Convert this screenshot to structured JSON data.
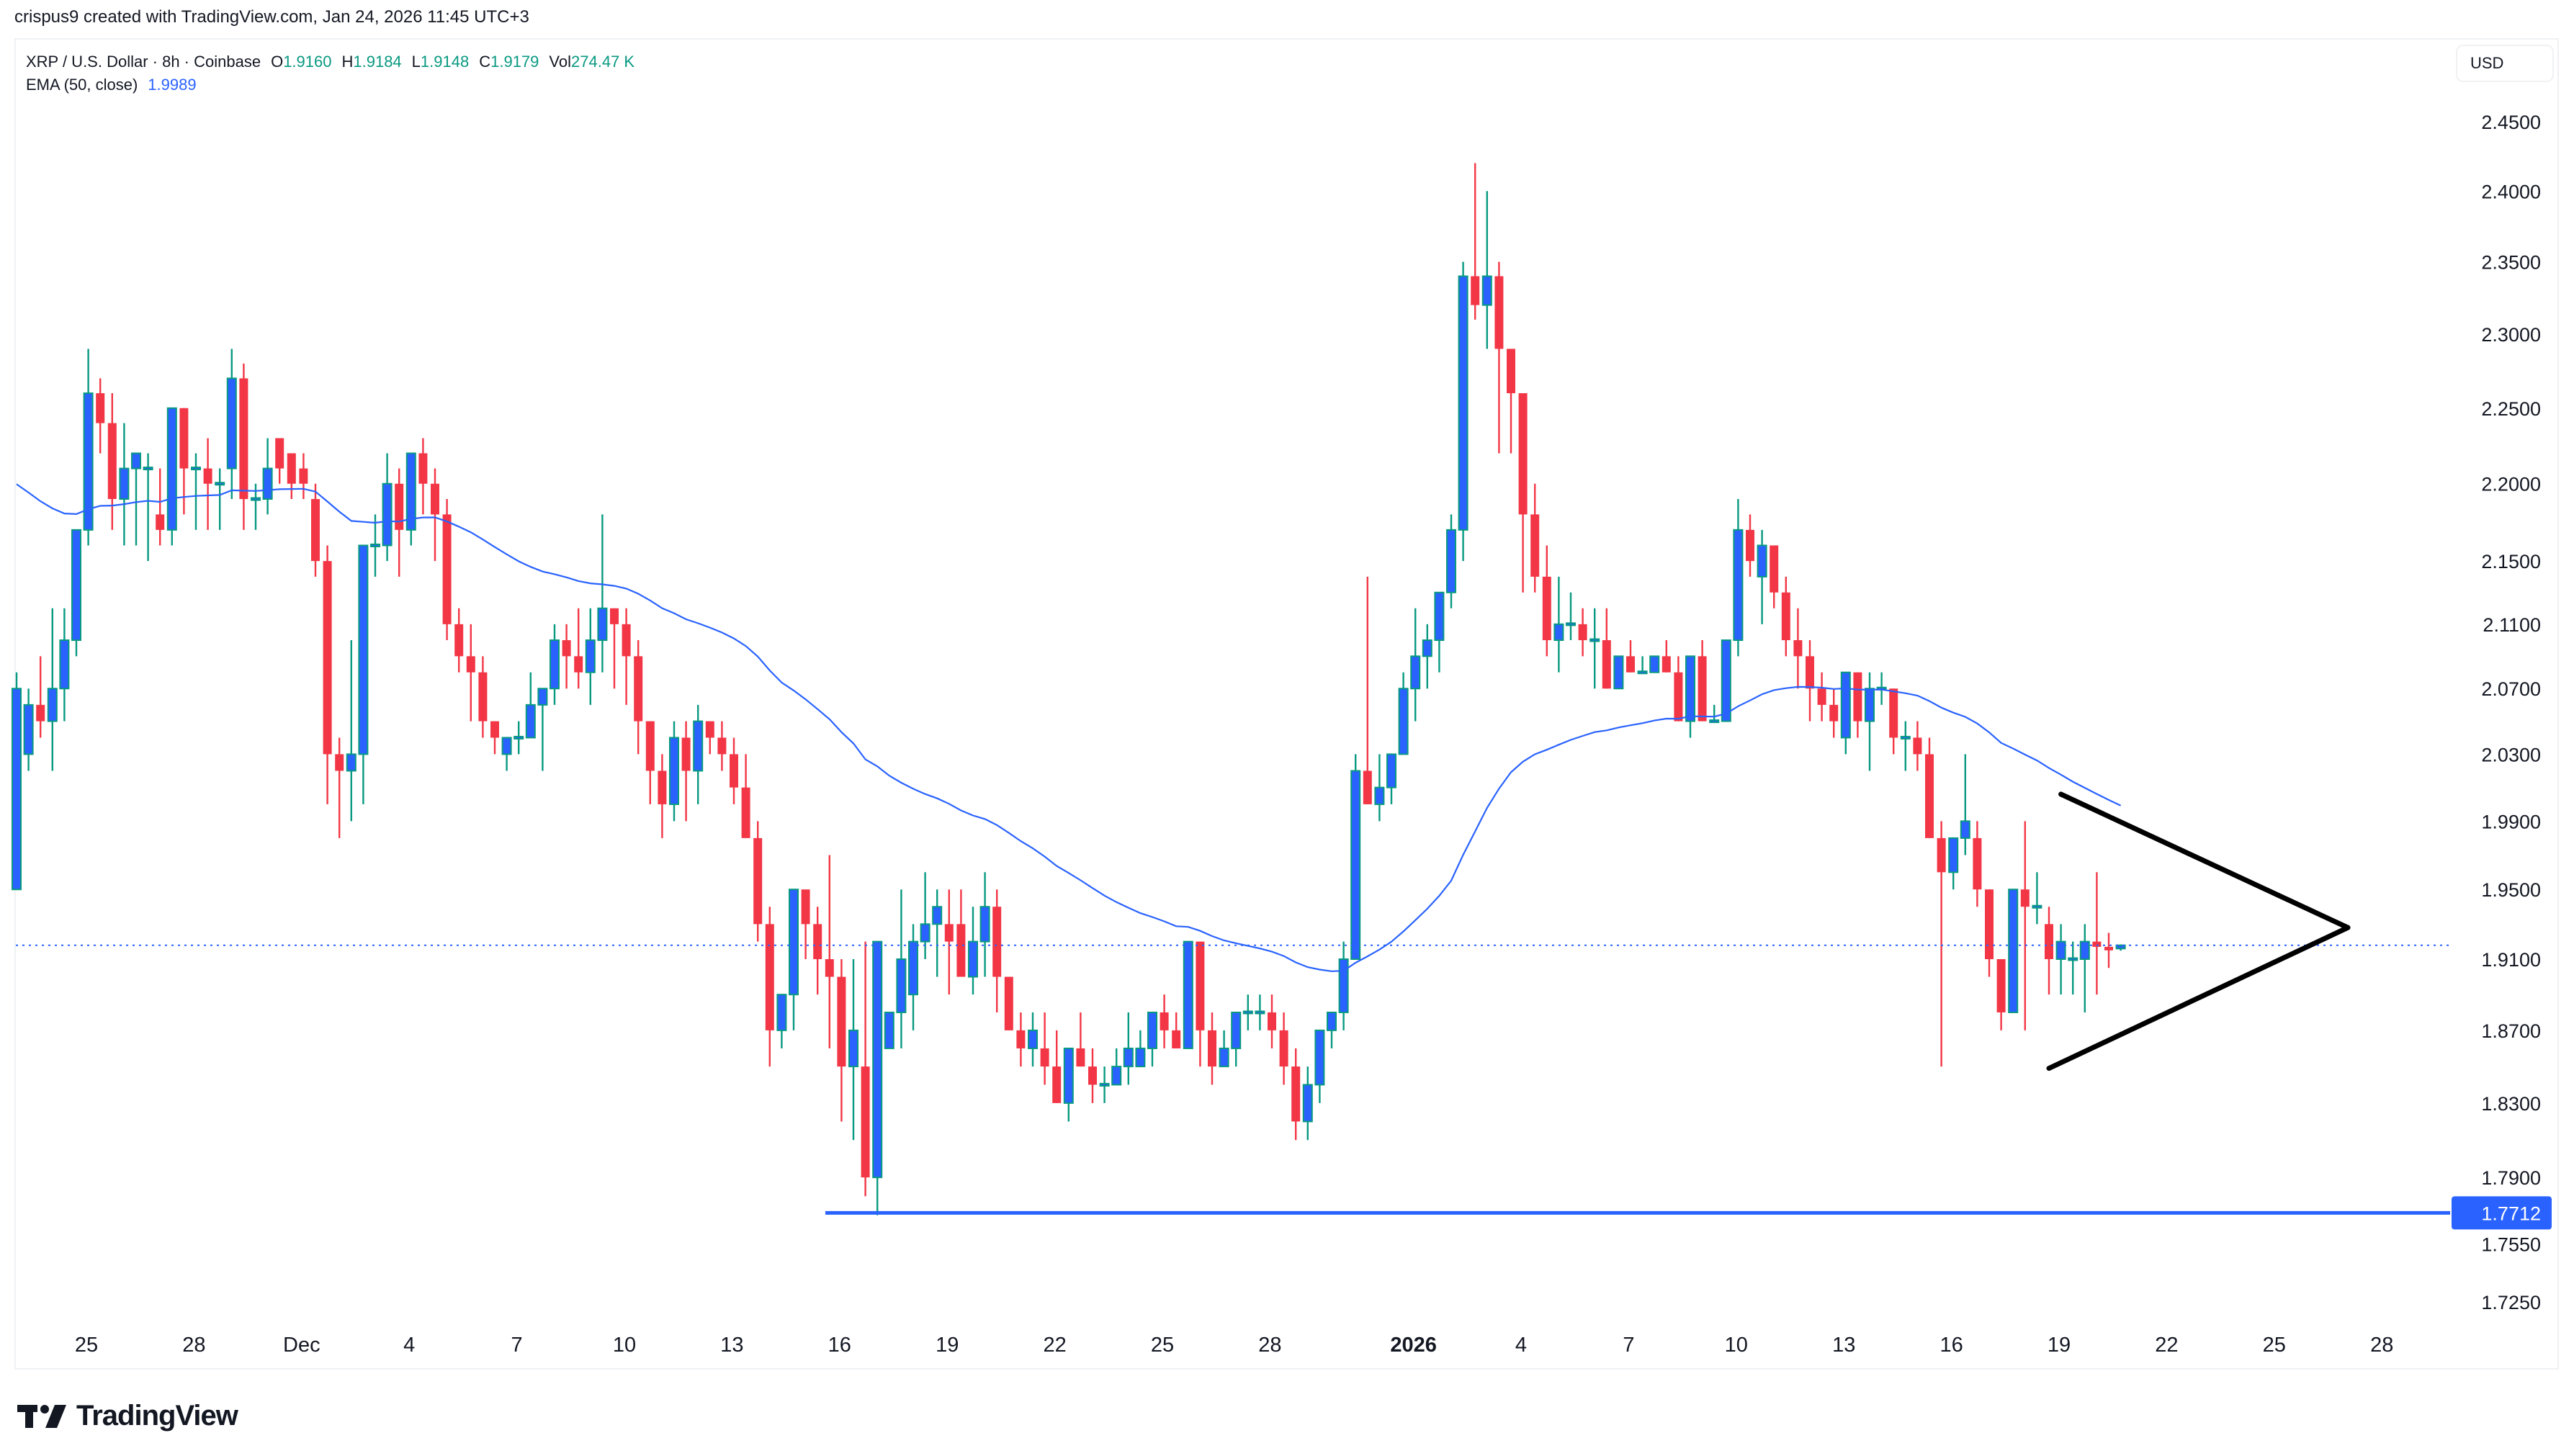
{
  "header": {
    "attribution": "crispus9 created with TradingView.com, Jan 24, 2026 11:45 UTC+3"
  },
  "legend": {
    "symbol": "XRP / U.S. Dollar · 8h · Coinbase",
    "open_label": "O",
    "open": "1.9160",
    "high_label": "H",
    "high": "1.9184",
    "low_label": "L",
    "low": "1.9148",
    "close_label": "C",
    "close": "1.9179",
    "vol_label": "Vol",
    "volume": "274.47 K",
    "ema_label": "EMA (50, close)",
    "ema_value": "1.9989"
  },
  "price_axis": {
    "currency_button": "USD",
    "ticks": [
      "2.4500",
      "2.4000",
      "2.3500",
      "2.3000",
      "2.2500",
      "2.2000",
      "2.1500",
      "2.1100",
      "2.0700",
      "2.0300",
      "1.9900",
      "1.9500",
      "1.9100",
      "1.8700",
      "1.8300",
      "1.7900",
      "1.7550",
      "1.7250"
    ],
    "highlight_label": "1.7712"
  },
  "time_axis": {
    "ticks": [
      {
        "label": "25",
        "day": 0
      },
      {
        "label": "28",
        "day": 3
      },
      {
        "label": "Dec",
        "day": 6
      },
      {
        "label": "4",
        "day": 9
      },
      {
        "label": "7",
        "day": 12
      },
      {
        "label": "10",
        "day": 15
      },
      {
        "label": "13",
        "day": 18
      },
      {
        "label": "16",
        "day": 21
      },
      {
        "label": "19",
        "day": 24
      },
      {
        "label": "22",
        "day": 27
      },
      {
        "label": "25",
        "day": 30
      },
      {
        "label": "28",
        "day": 33
      },
      {
        "label": "2026",
        "day": 37,
        "bold": true
      },
      {
        "label": "4",
        "day": 40
      },
      {
        "label": "7",
        "day": 43
      },
      {
        "label": "10",
        "day": 46
      },
      {
        "label": "13",
        "day": 49
      },
      {
        "label": "16",
        "day": 52
      },
      {
        "label": "19",
        "day": 55
      },
      {
        "label": "22",
        "day": 58
      },
      {
        "label": "25",
        "day": 61
      },
      {
        "label": "28",
        "day": 64
      }
    ]
  },
  "colors": {
    "up_body": "#2962ff",
    "up_border": "#089981",
    "down": "#f23645",
    "ema": "#2962ff",
    "support": "#2962ff",
    "triangle": "#000000",
    "last_price_line": "#2962ff"
  },
  "branding": {
    "logo_text": "TradingView"
  },
  "chart_data": {
    "type": "candlestick",
    "title": "XRP / U.S. Dollar · 8h · Coinbase",
    "xlabel": "",
    "ylabel": "USD",
    "scale": "log",
    "ylim": [
      1.7,
      2.47
    ],
    "x_range": "Nov 24, 2025 – Jan 24, 2026 (8h bars)",
    "indicator": {
      "name": "EMA (50, close)",
      "last": 1.9989,
      "seed": 2.205
    },
    "last_price": 1.9179,
    "horizontal_line": {
      "price": 1.7712,
      "label": "1.7712",
      "from_bar": 68
    },
    "triangle": {
      "upper_start": {
        "bar": 171,
        "price": 2.006
      },
      "apex": {
        "bar": 195,
        "price": 1.928
      },
      "lower_start": {
        "bar": 170,
        "price": 1.849
      }
    },
    "candles": [
      [
        1.95,
        2.08,
        1.95,
        2.07
      ],
      [
        2.03,
        2.07,
        2.02,
        2.06
      ],
      [
        2.06,
        2.09,
        2.04,
        2.05
      ],
      [
        2.05,
        2.12,
        2.02,
        2.07
      ],
      [
        2.07,
        2.12,
        2.05,
        2.1
      ],
      [
        2.1,
        2.16,
        2.09,
        2.17
      ],
      [
        2.17,
        2.29,
        2.16,
        2.26
      ],
      [
        2.26,
        2.27,
        2.22,
        2.24
      ],
      [
        2.24,
        2.26,
        2.17,
        2.19
      ],
      [
        2.19,
        2.24,
        2.16,
        2.21
      ],
      [
        2.21,
        2.22,
        2.16,
        2.22
      ],
      [
        2.21,
        2.22,
        2.15,
        2.21
      ],
      [
        2.18,
        2.21,
        2.16,
        2.17
      ],
      [
        2.17,
        2.25,
        2.16,
        2.25
      ],
      [
        2.25,
        2.25,
        2.18,
        2.21
      ],
      [
        2.21,
        2.22,
        2.17,
        2.21
      ],
      [
        2.21,
        2.23,
        2.17,
        2.2
      ],
      [
        2.2,
        2.21,
        2.17,
        2.2
      ],
      [
        2.21,
        2.29,
        2.19,
        2.27
      ],
      [
        2.27,
        2.28,
        2.17,
        2.19
      ],
      [
        2.19,
        2.2,
        2.17,
        2.19
      ],
      [
        2.19,
        2.23,
        2.18,
        2.21
      ],
      [
        2.23,
        2.23,
        2.2,
        2.21
      ],
      [
        2.22,
        2.22,
        2.19,
        2.2
      ],
      [
        2.21,
        2.22,
        2.19,
        2.2
      ],
      [
        2.19,
        2.2,
        2.14,
        2.15
      ],
      [
        2.15,
        2.16,
        2.0,
        2.03
      ],
      [
        2.03,
        2.04,
        1.98,
        2.02
      ],
      [
        2.02,
        2.1,
        1.99,
        2.03
      ],
      [
        2.03,
        2.15,
        2.0,
        2.16
      ],
      [
        2.16,
        2.18,
        2.14,
        2.16
      ],
      [
        2.16,
        2.22,
        2.15,
        2.2
      ],
      [
        2.2,
        2.21,
        2.14,
        2.17
      ],
      [
        2.17,
        2.22,
        2.16,
        2.22
      ],
      [
        2.22,
        2.23,
        2.18,
        2.2
      ],
      [
        2.2,
        2.21,
        2.15,
        2.18
      ],
      [
        2.18,
        2.19,
        2.1,
        2.11
      ],
      [
        2.11,
        2.12,
        2.08,
        2.09
      ],
      [
        2.09,
        2.11,
        2.05,
        2.08
      ],
      [
        2.08,
        2.09,
        2.04,
        2.05
      ],
      [
        2.05,
        2.05,
        2.03,
        2.04
      ],
      [
        2.03,
        2.04,
        2.02,
        2.04
      ],
      [
        2.04,
        2.05,
        2.03,
        2.04
      ],
      [
        2.04,
        2.08,
        2.04,
        2.06
      ],
      [
        2.06,
        2.07,
        2.02,
        2.07
      ],
      [
        2.07,
        2.11,
        2.06,
        2.1
      ],
      [
        2.1,
        2.11,
        2.07,
        2.09
      ],
      [
        2.09,
        2.12,
        2.07,
        2.08
      ],
      [
        2.08,
        2.12,
        2.06,
        2.1
      ],
      [
        2.1,
        2.18,
        2.08,
        2.12
      ],
      [
        2.12,
        2.12,
        2.07,
        2.11
      ],
      [
        2.11,
        2.12,
        2.06,
        2.09
      ],
      [
        2.09,
        2.1,
        2.03,
        2.05
      ],
      [
        2.05,
        2.05,
        2.0,
        2.02
      ],
      [
        2.02,
        2.03,
        1.98,
        2.0
      ],
      [
        2.0,
        2.05,
        1.99,
        2.04
      ],
      [
        2.04,
        2.05,
        1.99,
        2.02
      ],
      [
        2.02,
        2.06,
        2.0,
        2.05
      ],
      [
        2.05,
        2.05,
        2.03,
        2.04
      ],
      [
        2.04,
        2.05,
        2.02,
        2.03
      ],
      [
        2.03,
        2.04,
        2.0,
        2.01
      ],
      [
        2.01,
        2.03,
        1.99,
        1.98
      ],
      [
        1.98,
        1.99,
        1.92,
        1.93
      ],
      [
        1.93,
        1.94,
        1.85,
        1.87
      ],
      [
        1.87,
        1.89,
        1.86,
        1.89
      ],
      [
        1.89,
        1.94,
        1.87,
        1.95
      ],
      [
        1.95,
        1.94,
        1.91,
        1.93
      ],
      [
        1.93,
        1.94,
        1.89,
        1.91
      ],
      [
        1.91,
        1.97,
        1.86,
        1.9
      ],
      [
        1.9,
        1.91,
        1.82,
        1.85
      ],
      [
        1.85,
        1.91,
        1.81,
        1.87
      ],
      [
        1.85,
        1.92,
        1.78,
        1.79
      ],
      [
        1.79,
        1.92,
        1.77,
        1.92
      ],
      [
        1.86,
        1.88,
        1.86,
        1.88
      ],
      [
        1.88,
        1.95,
        1.86,
        1.91
      ],
      [
        1.89,
        1.93,
        1.87,
        1.92
      ],
      [
        1.92,
        1.96,
        1.91,
        1.93
      ],
      [
        1.93,
        1.95,
        1.9,
        1.94
      ],
      [
        1.93,
        1.95,
        1.89,
        1.92
      ],
      [
        1.93,
        1.95,
        1.9,
        1.9
      ],
      [
        1.9,
        1.94,
        1.89,
        1.92
      ],
      [
        1.92,
        1.96,
        1.9,
        1.94
      ],
      [
        1.94,
        1.95,
        1.88,
        1.9
      ],
      [
        1.9,
        1.9,
        1.87,
        1.87
      ],
      [
        1.87,
        1.88,
        1.85,
        1.86
      ],
      [
        1.86,
        1.88,
        1.85,
        1.87
      ],
      [
        1.86,
        1.88,
        1.84,
        1.85
      ],
      [
        1.85,
        1.87,
        1.83,
        1.83
      ],
      [
        1.83,
        1.86,
        1.82,
        1.86
      ],
      [
        1.86,
        1.88,
        1.85,
        1.85
      ],
      [
        1.85,
        1.86,
        1.83,
        1.84
      ],
      [
        1.84,
        1.85,
        1.83,
        1.84
      ],
      [
        1.84,
        1.86,
        1.84,
        1.85
      ],
      [
        1.85,
        1.88,
        1.84,
        1.86
      ],
      [
        1.85,
        1.87,
        1.85,
        1.86
      ],
      [
        1.86,
        1.88,
        1.85,
        1.88
      ],
      [
        1.88,
        1.89,
        1.86,
        1.87
      ],
      [
        1.87,
        1.88,
        1.86,
        1.86
      ],
      [
        1.86,
        1.92,
        1.86,
        1.92
      ],
      [
        1.92,
        1.92,
        1.85,
        1.87
      ],
      [
        1.87,
        1.88,
        1.84,
        1.85
      ],
      [
        1.85,
        1.87,
        1.85,
        1.86
      ],
      [
        1.86,
        1.88,
        1.85,
        1.88
      ],
      [
        1.88,
        1.89,
        1.87,
        1.88
      ],
      [
        1.88,
        1.89,
        1.87,
        1.88
      ],
      [
        1.88,
        1.89,
        1.86,
        1.87
      ],
      [
        1.87,
        1.88,
        1.84,
        1.85
      ],
      [
        1.85,
        1.86,
        1.81,
        1.82
      ],
      [
        1.82,
        1.85,
        1.81,
        1.84
      ],
      [
        1.84,
        1.87,
        1.83,
        1.87
      ],
      [
        1.87,
        1.88,
        1.86,
        1.88
      ],
      [
        1.88,
        1.92,
        1.87,
        1.91
      ],
      [
        1.91,
        2.03,
        1.91,
        2.02
      ],
      [
        2.02,
        2.14,
        2.0,
        2.0
      ],
      [
        2.0,
        2.03,
        1.99,
        2.01
      ],
      [
        2.01,
        2.03,
        2.0,
        2.03
      ],
      [
        2.03,
        2.08,
        2.03,
        2.07
      ],
      [
        2.07,
        2.12,
        2.05,
        2.09
      ],
      [
        2.09,
        2.11,
        2.07,
        2.1
      ],
      [
        2.1,
        2.12,
        2.08,
        2.13
      ],
      [
        2.13,
        2.18,
        2.12,
        2.17
      ],
      [
        2.17,
        2.35,
        2.15,
        2.34
      ],
      [
        2.34,
        2.42,
        2.31,
        2.32
      ],
      [
        2.32,
        2.4,
        2.29,
        2.34
      ],
      [
        2.34,
        2.35,
        2.22,
        2.29
      ],
      [
        2.29,
        2.27,
        2.22,
        2.26
      ],
      [
        2.26,
        2.24,
        2.13,
        2.18
      ],
      [
        2.18,
        2.2,
        2.13,
        2.14
      ],
      [
        2.14,
        2.16,
        2.09,
        2.1
      ],
      [
        2.1,
        2.14,
        2.08,
        2.11
      ],
      [
        2.11,
        2.13,
        2.1,
        2.11
      ],
      [
        2.11,
        2.12,
        2.09,
        2.1
      ],
      [
        2.1,
        2.12,
        2.07,
        2.1
      ],
      [
        2.1,
        2.12,
        2.07,
        2.07
      ],
      [
        2.07,
        2.09,
        2.07,
        2.09
      ],
      [
        2.09,
        2.1,
        2.08,
        2.08
      ],
      [
        2.08,
        2.09,
        2.08,
        2.08
      ],
      [
        2.08,
        2.09,
        2.08,
        2.09
      ],
      [
        2.09,
        2.1,
        2.08,
        2.08
      ],
      [
        2.08,
        2.09,
        2.05,
        2.05
      ],
      [
        2.05,
        2.09,
        2.04,
        2.09
      ],
      [
        2.09,
        2.1,
        2.05,
        2.05
      ],
      [
        2.05,
        2.06,
        2.05,
        2.05
      ],
      [
        2.05,
        2.1,
        2.05,
        2.1
      ],
      [
        2.1,
        2.19,
        2.09,
        2.17
      ],
      [
        2.17,
        2.18,
        2.14,
        2.15
      ],
      [
        2.14,
        2.17,
        2.11,
        2.16
      ],
      [
        2.16,
        2.16,
        2.12,
        2.13
      ],
      [
        2.13,
        2.14,
        2.09,
        2.1
      ],
      [
        2.1,
        2.12,
        2.07,
        2.09
      ],
      [
        2.09,
        2.1,
        2.05,
        2.07
      ],
      [
        2.07,
        2.08,
        2.05,
        2.06
      ],
      [
        2.06,
        2.07,
        2.04,
        2.05
      ],
      [
        2.04,
        2.07,
        2.03,
        2.08
      ],
      [
        2.08,
        2.08,
        2.04,
        2.05
      ],
      [
        2.05,
        2.08,
        2.02,
        2.07
      ],
      [
        2.07,
        2.08,
        2.06,
        2.07
      ],
      [
        2.07,
        2.07,
        2.03,
        2.04
      ],
      [
        2.04,
        2.05,
        2.02,
        2.04
      ],
      [
        2.04,
        2.05,
        2.02,
        2.03
      ],
      [
        2.03,
        2.04,
        1.98,
        1.98
      ],
      [
        1.98,
        1.99,
        1.85,
        1.96
      ],
      [
        1.96,
        1.98,
        1.95,
        1.98
      ],
      [
        1.98,
        2.03,
        1.97,
        1.99
      ],
      [
        1.98,
        1.99,
        1.94,
        1.95
      ],
      [
        1.95,
        1.95,
        1.9,
        1.91
      ],
      [
        1.91,
        1.91,
        1.87,
        1.88
      ],
      [
        1.88,
        1.93,
        1.88,
        1.95
      ],
      [
        1.95,
        1.99,
        1.87,
        1.94
      ],
      [
        1.94,
        1.96,
        1.93,
        1.94
      ],
      [
        1.93,
        1.94,
        1.89,
        1.91
      ],
      [
        1.91,
        1.93,
        1.89,
        1.92
      ],
      [
        1.91,
        1.92,
        1.89,
        1.91
      ],
      [
        1.91,
        1.93,
        1.88,
        1.92
      ],
      [
        1.92,
        1.96,
        1.89,
        1.917
      ],
      [
        1.917,
        1.925,
        1.905,
        1.915
      ],
      [
        1.916,
        1.9184,
        1.9148,
        1.9179
      ]
    ]
  }
}
